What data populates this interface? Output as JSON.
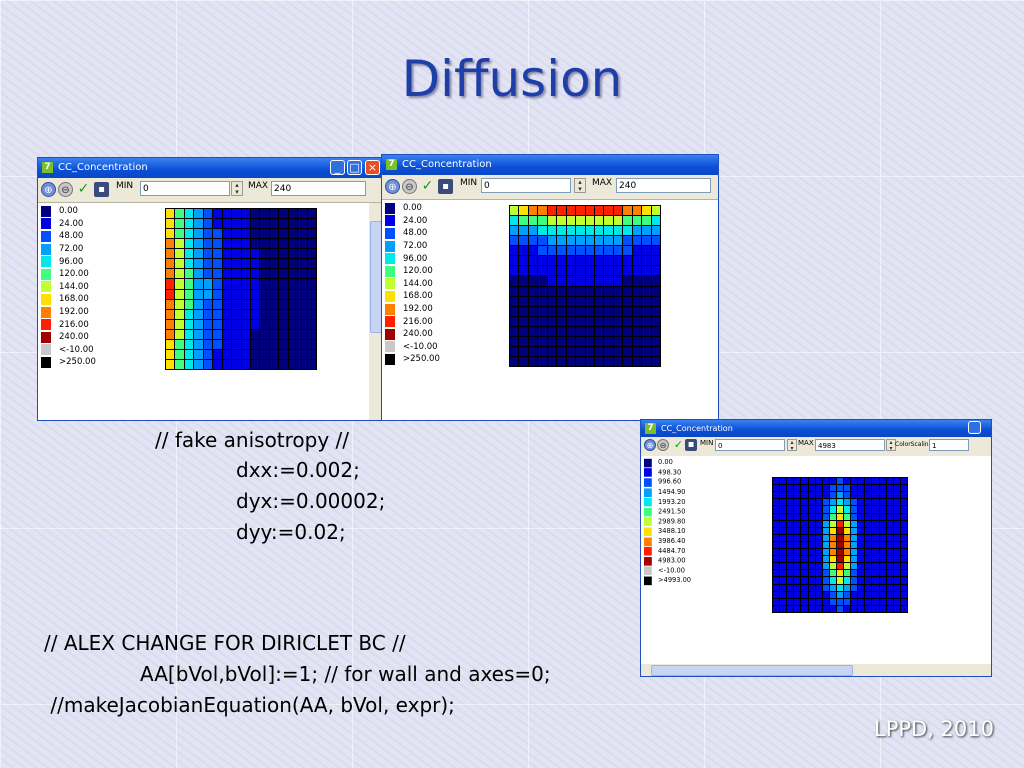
{
  "slide": {
    "title": "Diffusion",
    "footer": "LPPD, 2010",
    "code_block1": [
      "// fake anisotropy //",
      "dxx:=0.002;",
      "dyx:=0.00002;",
      "dyy:=0.02;"
    ],
    "code_block2": [
      "// ALEX CHANGE FOR DIRICLET BC //",
      "AA[bVol,bVol]:=1; // for wall and axes=0;",
      " //makeJacobianEquation(AA, bVol, expr);"
    ]
  },
  "windows": [
    {
      "title": "CC_Concentration",
      "min_label": "MIN",
      "min_value": "0",
      "max_label": "MAX",
      "max_value": "240",
      "legend": [
        "0.00",
        "24.00",
        "48.00",
        "72.00",
        "96.00",
        "120.00",
        "144.00",
        "168.00",
        "192.00",
        "216.00",
        "240.00",
        "<-10.00",
        ">250.00"
      ],
      "pattern": "left"
    },
    {
      "title": "CC_Concentration",
      "min_label": "MIN",
      "min_value": "0",
      "max_label": "MAX",
      "max_value": "240",
      "legend": [
        "0.00",
        "24.00",
        "48.00",
        "72.00",
        "96.00",
        "120.00",
        "144.00",
        "168.00",
        "192.00",
        "216.00",
        "240.00",
        "<-10.00",
        ">250.00"
      ],
      "pattern": "top"
    },
    {
      "title": "CC_Concentration",
      "min_label": "MIN",
      "min_value": "0",
      "max_label": "MAX",
      "max_value": "4983",
      "colorscaling_label": "ColorScaling",
      "colorscaling_value": "1",
      "legend": [
        "0.00",
        "498.30",
        "996.60",
        "1494.90",
        "1993.20",
        "2491.50",
        "2989.80",
        "3488.10",
        "3986.40",
        "4484.70",
        "4983.00",
        "<-10.00",
        ">4993.00"
      ],
      "pattern": "center"
    }
  ],
  "colors": {
    "legend": [
      "#00007f",
      "#0000e6",
      "#0050ff",
      "#00a0ff",
      "#00e8e8",
      "#40ff80",
      "#c0ff30",
      "#ffe000",
      "#ff8000",
      "#ff2000",
      "#a00000",
      "#c8c8c8",
      "#000000"
    ],
    "titlebar": "#0a4fd6",
    "slide_title": "#1f3fa8"
  }
}
